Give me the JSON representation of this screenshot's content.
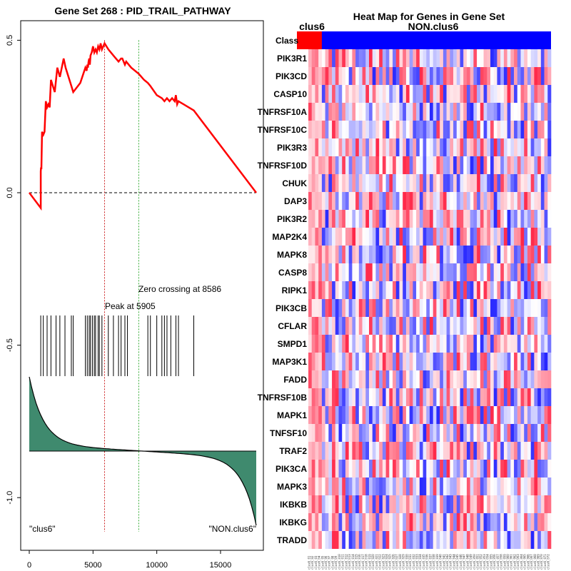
{
  "chart_data": [
    {
      "type": "line",
      "title": "Gene Set  268 : PID_TRAIL_PATHWAY",
      "xlim": [
        0,
        17800
      ],
      "ylim": [
        -1.1,
        0.55
      ],
      "x_ticks": [
        0,
        5000,
        10000,
        15000
      ],
      "x_tick_labels": [
        "0",
        "5000",
        "10000",
        "15000"
      ],
      "y_ticks": [
        0.5,
        0.0,
        -0.5,
        -1.0
      ],
      "y_tick_labels": [
        "0.5",
        "0.0",
        "-0.5",
        "-1.0"
      ],
      "running_es": {
        "x": [
          0,
          900,
          900,
          920,
          950,
          1000,
          1100,
          1200,
          1300,
          1400,
          1500,
          1600,
          1700,
          2000,
          2200,
          2400,
          2700,
          2850,
          3300,
          3450,
          4000,
          4400,
          4500,
          4550,
          4600,
          4650,
          4700,
          4750,
          4800,
          4900,
          5000,
          5100,
          5200,
          5300,
          5400,
          5500,
          5600,
          5700,
          5905,
          6200,
          6600,
          7000,
          7200,
          7300,
          7500,
          7600,
          8000,
          8586,
          9000,
          9300,
          9500,
          10000,
          10400,
          10600,
          10800,
          11000,
          11200,
          11400,
          11500,
          11600,
          11700,
          12900,
          17800
        ],
        "y": [
          0.0,
          -0.05,
          0.07,
          0.08,
          0.08,
          0.2,
          0.19,
          0.2,
          0.3,
          0.28,
          0.29,
          0.28,
          0.37,
          0.33,
          0.41,
          0.38,
          0.44,
          0.41,
          0.35,
          0.33,
          0.36,
          0.41,
          0.4,
          0.42,
          0.41,
          0.43,
          0.44,
          0.42,
          0.45,
          0.46,
          0.48,
          0.46,
          0.47,
          0.46,
          0.48,
          0.47,
          0.49,
          0.47,
          0.49,
          0.47,
          0.45,
          0.43,
          0.44,
          0.44,
          0.42,
          0.43,
          0.41,
          0.39,
          0.37,
          0.36,
          0.35,
          0.32,
          0.31,
          0.3,
          0.31,
          0.3,
          0.31,
          0.3,
          0.32,
          0.29,
          0.3,
          0.27,
          0.0
        ]
      },
      "hits": [
        900,
        1100,
        1400,
        1700,
        2100,
        2400,
        2800,
        3300,
        3450,
        4400,
        4550,
        4700,
        4800,
        4950,
        5100,
        5200,
        5400,
        5500,
        5700,
        6200,
        6600,
        7000,
        7200,
        7500,
        7700,
        9300,
        9500,
        10000,
        10400,
        10600,
        10800,
        11100,
        11500,
        11700,
        12900
      ],
      "peak_x": 5905,
      "zero_crossing_x": 8586,
      "annotations": {
        "peak": "Peak at 5905",
        "zero": "Zero crossing at 8586",
        "left_class": "\"clus6\"",
        "right_class": "\"NON.clus6\""
      },
      "colors": {
        "es_line": "#ff0000",
        "fill": "#3f8a6e",
        "peak_line": "#cc2222",
        "zero_line": "#33aa33"
      }
    },
    {
      "type": "heatmap",
      "title": "Heat Map for Genes in Gene Set",
      "class_label": "Class",
      "classes": [
        "clus6",
        "NON.clus6"
      ],
      "class_colors": [
        "#ff0000",
        "#0000ff"
      ],
      "genes": [
        "PIK3R1",
        "PIK3CD",
        "CASP10",
        "TNFRSF10A",
        "TNFRSF10C",
        "PIK3R3",
        "TNFRSF10D",
        "CHUK",
        "DAP3",
        "PIK3R2",
        "MAP2K4",
        "MAPK8",
        "CASP8",
        "RIPK1",
        "PIK3CB",
        "CFLAR",
        "SMPD1",
        "MAP3K1",
        "FADD",
        "TNFRSF10B",
        "MAPK1",
        "TNFSF10",
        "TRAF2",
        "PIK3CA",
        "MAPK3",
        "IKBKB",
        "IKBKG",
        "TRADD"
      ],
      "n_columns": 72,
      "n_class1_columns": 4,
      "sample_label_prefix": "clus6_0"
    }
  ]
}
